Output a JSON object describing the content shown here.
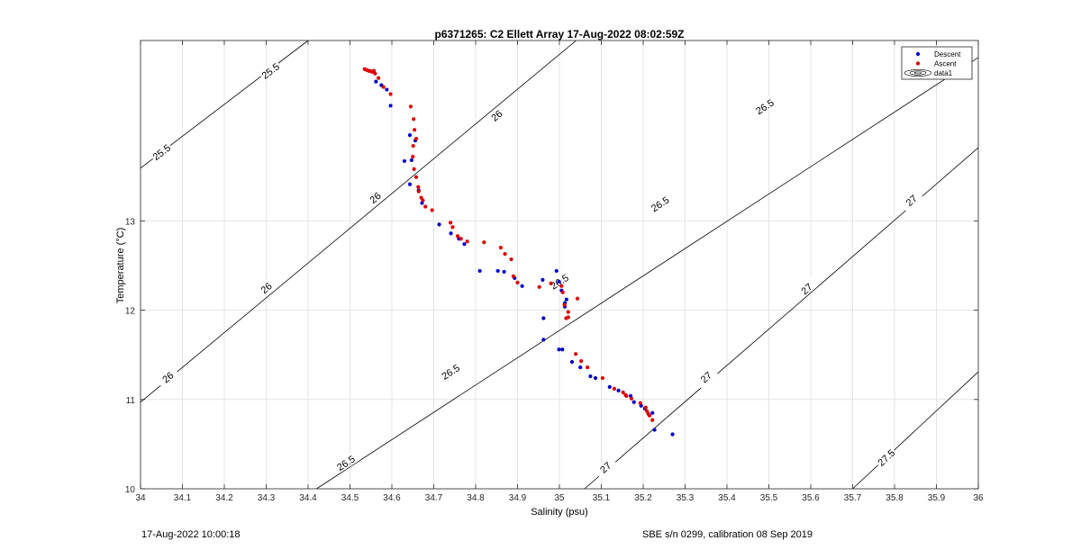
{
  "chart_data": {
    "type": "scatter",
    "title": "p6371265: C2 Ellett Array 17-Aug-2022 08:02:59Z",
    "xlabel": "Salinity (psu)",
    "ylabel": "Temperature (°C)",
    "xlim": [
      34,
      36
    ],
    "ylim": [
      10,
      15.02
    ],
    "xticks": [
      34,
      34.1,
      34.2,
      34.3,
      34.4,
      34.5,
      34.6,
      34.7,
      34.8,
      34.9,
      35,
      35.1,
      35.2,
      35.3,
      35.4,
      35.5,
      35.6,
      35.7,
      35.8,
      35.9,
      36
    ],
    "xtick_labels": [
      "34",
      "34.1",
      "34.2",
      "34.3",
      "34.4",
      "34.5",
      "34.6",
      "34.7",
      "34.8",
      "34.9",
      "35",
      "35.1",
      "35.2",
      "35.3",
      "35.4",
      "35.5",
      "35.6",
      "35.7",
      "35.8",
      "35.9",
      "36"
    ],
    "yticks": [
      10,
      11,
      12,
      13
    ],
    "ytick_labels": [
      "10",
      "11",
      "12",
      "13"
    ],
    "grid": true,
    "legend": {
      "placement": "top-right",
      "entries": [
        "Descent",
        "Ascent",
        "data1"
      ]
    },
    "series": [
      {
        "name": "Descent",
        "color": "#0000cc",
        "x": [
          34.557,
          34.562,
          34.575,
          34.588,
          34.597,
          34.643,
          34.656,
          34.647,
          34.63,
          34.643,
          34.664,
          34.672,
          34.713,
          34.741,
          34.76,
          34.773,
          34.81,
          34.853,
          34.868,
          34.893,
          34.911,
          34.96,
          34.993,
          34.999,
          35.005,
          35.013,
          35.013,
          35.017,
          34.962,
          34.962,
          34.999,
          35.007,
          35.03,
          35.05,
          35.074,
          35.086,
          35.12,
          35.141,
          35.17,
          35.178,
          35.195,
          35.204,
          35.222,
          35.227,
          35.27
        ],
        "y": [
          14.68,
          14.56,
          14.52,
          14.47,
          14.29,
          13.96,
          13.9,
          13.68,
          13.67,
          13.41,
          13.34,
          13.2,
          12.96,
          12.86,
          12.8,
          12.74,
          12.44,
          12.44,
          12.43,
          12.36,
          12.27,
          12.34,
          12.44,
          12.32,
          12.22,
          12.08,
          12.04,
          12.12,
          11.91,
          11.67,
          11.56,
          11.56,
          11.42,
          11.36,
          11.26,
          11.24,
          11.14,
          11.1,
          11.04,
          10.97,
          10.93,
          10.9,
          10.85,
          10.66,
          10.61
        ]
      },
      {
        "name": "Ascent",
        "color": "#dd0000",
        "x": [
          34.535,
          34.54,
          34.545,
          34.548,
          34.553,
          34.557,
          34.56,
          34.568,
          34.58,
          34.597,
          34.645,
          34.652,
          34.654,
          34.658,
          34.651,
          34.65,
          34.653,
          34.658,
          34.663,
          34.664,
          34.67,
          34.674,
          34.68,
          34.696,
          34.74,
          34.745,
          34.757,
          34.765,
          34.78,
          34.82,
          34.86,
          34.87,
          34.885,
          34.89,
          34.9,
          34.952,
          34.98,
          35.005,
          35.008,
          35.012,
          35.021,
          35.021,
          35.016,
          35.043,
          35.039,
          35.052,
          35.067,
          35.103,
          35.131,
          35.152,
          35.158,
          35.16,
          35.172,
          35.193,
          35.206,
          35.209,
          35.212,
          35.215,
          35.222
        ],
        "y": [
          14.7,
          14.69,
          14.68,
          14.68,
          14.67,
          14.68,
          14.65,
          14.6,
          14.5,
          14.42,
          14.28,
          14.14,
          14.02,
          13.92,
          13.84,
          13.72,
          13.58,
          13.49,
          13.38,
          13.33,
          13.26,
          13.23,
          13.16,
          13.12,
          12.98,
          12.93,
          12.83,
          12.8,
          12.77,
          12.76,
          12.7,
          12.63,
          12.57,
          12.38,
          12.31,
          12.26,
          12.3,
          12.27,
          12.2,
          12.06,
          11.98,
          11.92,
          11.91,
          12.13,
          11.51,
          11.43,
          11.36,
          11.24,
          11.12,
          11.08,
          11.05,
          11.04,
          11.01,
          10.96,
          10.91,
          10.87,
          10.84,
          10.82,
          10.77
        ]
      }
    ],
    "isopycnals": [
      {
        "label": "25.5",
        "start": [
          34,
          13.59
        ],
        "end": [
          34.4,
          15.02
        ],
        "label_at": [
          [
            34.05,
            13.77
          ],
          [
            34.31,
            14.68
          ]
        ]
      },
      {
        "label": "26",
        "start": [
          34,
          10.97
        ],
        "end": [
          35.04,
          15.02
        ],
        "label_at": [
          [
            34.065,
            11.25
          ],
          [
            34.3,
            12.25
          ],
          [
            34.56,
            13.26
          ],
          [
            34.85,
            14.18
          ]
        ]
      },
      {
        "label": "26.5",
        "start": [
          34.42,
          10
        ],
        "end": [
          36,
          14.83
        ],
        "label_at": [
          [
            34.49,
            10.29
          ],
          [
            34.74,
            11.31
          ],
          [
            35.0,
            12.32
          ],
          [
            35.24,
            13.19
          ],
          [
            35.49,
            14.28
          ]
        ]
      },
      {
        "label": "27",
        "start": [
          35.06,
          10
        ],
        "end": [
          36,
          13.82
        ],
        "label_at": [
          [
            35.11,
            10.24
          ],
          [
            35.35,
            11.25
          ],
          [
            35.59,
            12.24
          ],
          [
            35.84,
            13.23
          ]
        ]
      },
      {
        "label": "27.5",
        "start": [
          35.7,
          10
        ],
        "end": [
          36,
          11.31
        ],
        "label_at": [
          [
            35.78,
            10.35
          ]
        ]
      }
    ]
  },
  "footer": {
    "left": "17-Aug-2022 10:00:18",
    "right": "SBE s/n 0299, calibration 08 Sep 2019"
  }
}
